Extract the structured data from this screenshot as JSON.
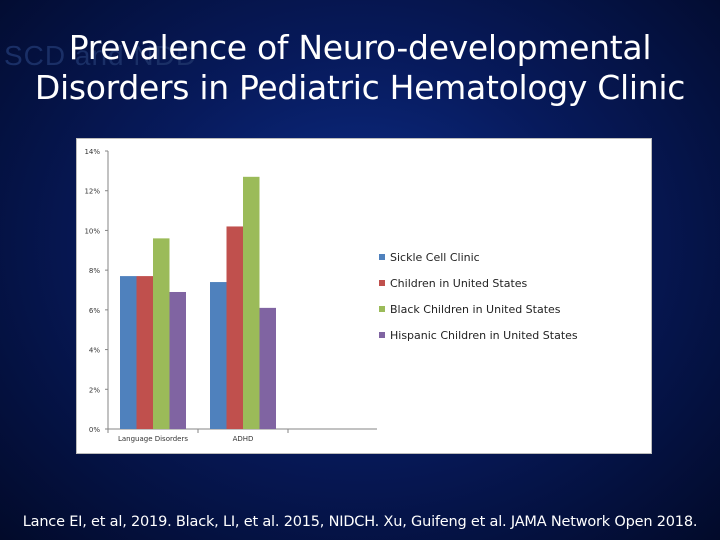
{
  "slide": {
    "ghost_text": "SCD and NDD",
    "title_line1": "Prevalence of Neuro-developmental",
    "title_line2": "Disorders in Pediatric Hematology Clinic",
    "footer": "Lance EI, et al, 2019. Black, LI, et al. 2015, NIDCH.  Xu, Guifeng et al. JAMA Network Open 2018."
  },
  "chart_data": {
    "type": "bar",
    "title": "",
    "xlabel": "",
    "ylabel": "",
    "ylim": [
      0,
      14
    ],
    "y_ticks": [
      0,
      2,
      4,
      6,
      8,
      10,
      12,
      14
    ],
    "y_tick_labels": [
      "0%",
      "2%",
      "4%",
      "6%",
      "8%",
      "10%",
      "12%",
      "14%"
    ],
    "categories": [
      "Language Disorders",
      "ADHD"
    ],
    "series": [
      {
        "name": "Sickle Cell Clinic",
        "color": "#4f81bd",
        "values": [
          7.7,
          7.4
        ]
      },
      {
        "name": "Children in United States",
        "color": "#c0504d",
        "values": [
          7.7,
          10.2
        ]
      },
      {
        "name": "Black Children in United States",
        "color": "#9bbb59",
        "values": [
          9.6,
          12.7
        ]
      },
      {
        "name": "Hispanic Children in United States",
        "color": "#8064a2",
        "values": [
          6.9,
          6.1
        ]
      }
    ],
    "legend_position": "right",
    "grid": false
  }
}
